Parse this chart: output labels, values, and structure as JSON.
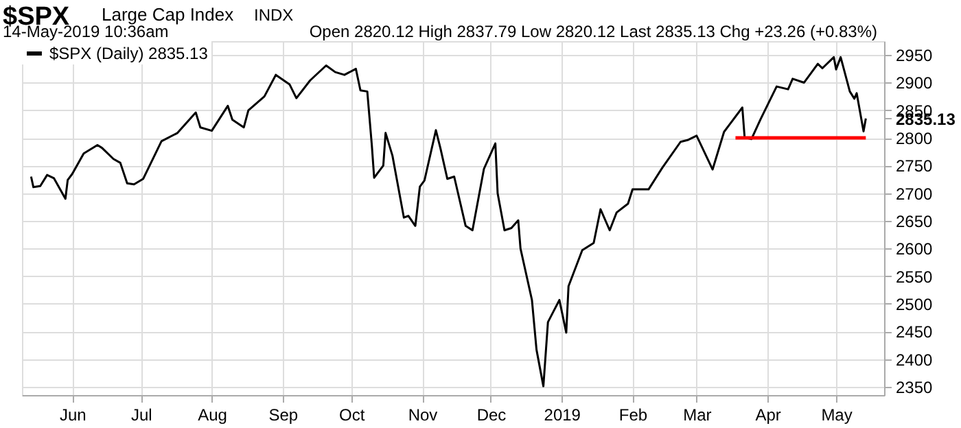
{
  "chart_data": {
    "type": "line",
    "title": "$SPX",
    "annotations": [
      "Large Cap Index",
      "INDX",
      "14-May-2019 10:36am",
      "Open 2820.12  High 2837.79  Low 2820.12  Last 2835.13  Chg +23.26 (+0.83%)"
    ],
    "series": [
      {
        "name": "$SPX (Daily) 2835.13",
        "color": "#000000",
        "x": [
          "2018-05-14",
          "2018-05-15",
          "2018-05-18",
          "2018-05-21",
          "2018-05-24",
          "2018-05-29",
          "2018-05-30",
          "2018-06-01",
          "2018-06-06",
          "2018-06-12",
          "2018-06-14",
          "2018-06-19",
          "2018-06-22",
          "2018-06-25",
          "2018-06-28",
          "2018-07-02",
          "2018-07-06",
          "2018-07-10",
          "2018-07-17",
          "2018-07-25",
          "2018-07-27",
          "2018-08-01",
          "2018-08-08",
          "2018-08-10",
          "2018-08-15",
          "2018-08-17",
          "2018-08-24",
          "2018-08-29",
          "2018-09-04",
          "2018-09-07",
          "2018-09-13",
          "2018-09-20",
          "2018-09-24",
          "2018-09-28",
          "2018-10-03",
          "2018-10-05",
          "2018-10-08",
          "2018-10-10",
          "2018-10-11",
          "2018-10-15",
          "2018-10-16",
          "2018-10-19",
          "2018-10-24",
          "2018-10-26",
          "2018-10-29",
          "2018-10-31",
          "2018-11-02",
          "2018-11-07",
          "2018-11-09",
          "2018-11-12",
          "2018-11-15",
          "2018-11-20",
          "2018-11-23",
          "2018-11-28",
          "2018-12-03",
          "2018-12-04",
          "2018-12-07",
          "2018-12-10",
          "2018-12-13",
          "2018-12-14",
          "2018-12-19",
          "2018-12-21",
          "2018-12-24",
          "2018-12-26",
          "2018-12-31",
          "2019-01-03",
          "2019-01-04",
          "2019-01-10",
          "2019-01-15",
          "2019-01-18",
          "2019-01-22",
          "2019-01-25",
          "2019-01-30",
          "2019-02-01",
          "2019-02-08",
          "2019-02-14",
          "2019-02-22",
          "2019-02-25",
          "2019-03-01",
          "2019-03-08",
          "2019-03-13",
          "2019-03-15",
          "2019-03-21",
          "2019-03-22",
          "2019-03-25",
          "2019-03-29",
          "2019-04-05",
          "2019-04-10",
          "2019-04-12",
          "2019-04-17",
          "2019-04-23",
          "2019-04-25",
          "2019-04-30",
          "2019-05-01",
          "2019-05-03",
          "2019-05-07",
          "2019-05-09",
          "2019-05-10",
          "2019-05-13",
          "2019-05-14"
        ],
        "values": [
          2730,
          2711,
          2713,
          2733,
          2727,
          2690,
          2724,
          2735,
          2772,
          2787,
          2782,
          2762,
          2755,
          2718,
          2716,
          2726,
          2760,
          2794,
          2809,
          2846,
          2819,
          2813,
          2858,
          2833,
          2819,
          2850,
          2875,
          2914,
          2897,
          2872,
          2904,
          2931,
          2919,
          2914,
          2925,
          2886,
          2884,
          2786,
          2728,
          2750,
          2809,
          2768,
          2656,
          2659,
          2641,
          2712,
          2723,
          2814,
          2781,
          2726,
          2730,
          2641,
          2633,
          2744,
          2790,
          2700,
          2633,
          2637,
          2651,
          2600,
          2507,
          2417,
          2351,
          2467,
          2507,
          2448,
          2532,
          2597,
          2610,
          2671,
          2633,
          2665,
          2681,
          2707,
          2707,
          2746,
          2793,
          2796,
          2804,
          2743,
          2811,
          2822,
          2855,
          2801,
          2798,
          2834,
          2893,
          2888,
          2907,
          2900,
          2934,
          2926,
          2946,
          2924,
          2946,
          2884,
          2871,
          2881,
          2812,
          2835.13
        ]
      },
      {
        "color": "#ff0000",
        "x": [
          "2019-03-18",
          "2019-05-14"
        ],
        "values": [
          2800,
          2800
        ]
      }
    ],
    "xlim": [
      "2018-05-10",
      "2019-05-22"
    ],
    "xticks": [
      {
        "value": "2018-06-01",
        "label": "Jun"
      },
      {
        "value": "2018-07-01",
        "label": "Jul"
      },
      {
        "value": "2018-08-01",
        "label": "Aug"
      },
      {
        "value": "2018-09-01",
        "label": "Sep"
      },
      {
        "value": "2018-10-01",
        "label": "Oct"
      },
      {
        "value": "2018-11-01",
        "label": "Nov"
      },
      {
        "value": "2018-12-01",
        "label": "Dec"
      },
      {
        "value": "2019-01-01",
        "label": "2019"
      },
      {
        "value": "2019-02-01",
        "label": "Feb"
      },
      {
        "value": "2019-03-01",
        "label": "Mar"
      },
      {
        "value": "2019-04-01",
        "label": "Apr"
      },
      {
        "value": "2019-05-01",
        "label": "May"
      }
    ],
    "ylim": [
      2335,
      2975
    ],
    "yticks": [
      2350,
      2400,
      2450,
      2500,
      2550,
      2600,
      2650,
      2700,
      2750,
      2800,
      2835.13,
      2850,
      2900,
      2950
    ],
    "grid": true,
    "legend": "top left",
    "marker": "none",
    "line_style": "solid"
  }
}
